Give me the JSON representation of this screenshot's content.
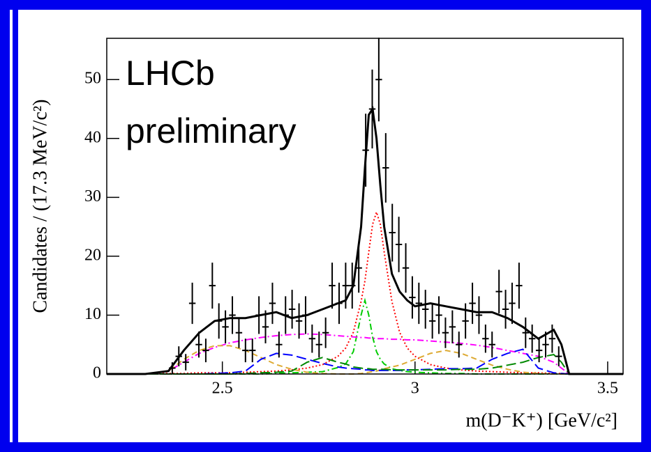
{
  "chart_data": {
    "type": "errorbar",
    "annotations": [
      "LHCb",
      "preliminary"
    ],
    "xlabel": "m(D⁻K⁺) [GeV/c²]",
    "ylabel": "Candidates / (17.3 MeV/c²)",
    "xlim": [
      2.2,
      3.54
    ],
    "ylim": [
      0,
      57
    ],
    "xticks": [
      2.5,
      3,
      3.5
    ],
    "yticks": [
      0,
      10,
      20,
      30,
      40,
      50
    ],
    "color": "#000000",
    "x": [
      2.37,
      2.387,
      2.405,
      2.422,
      2.439,
      2.457,
      2.474,
      2.491,
      2.508,
      2.526,
      2.543,
      2.56,
      2.578,
      2.595,
      2.612,
      2.63,
      2.647,
      2.664,
      2.681,
      2.699,
      2.716,
      2.733,
      2.751,
      2.768,
      2.785,
      2.803,
      2.82,
      2.837,
      2.854,
      2.872,
      2.889,
      2.906,
      2.924,
      2.941,
      2.958,
      2.976,
      2.993,
      3.01,
      3.027,
      3.045,
      3.062,
      3.079,
      3.097,
      3.114,
      3.131,
      3.149,
      3.166,
      3.183,
      3.2,
      3.218,
      3.235,
      3.252,
      3.27,
      3.287,
      3.304,
      3.322,
      3.339,
      3.356,
      3.373
    ],
    "values": [
      1,
      3,
      2,
      12,
      5,
      4,
      15,
      9,
      8,
      10,
      7,
      4,
      4,
      10,
      8,
      12,
      5,
      10,
      11,
      9,
      10,
      6,
      5,
      7,
      15,
      12,
      15,
      15,
      18,
      38,
      45,
      50,
      35,
      24,
      22,
      18,
      13,
      12,
      11,
      9,
      10,
      7,
      8,
      5,
      9,
      12,
      10,
      6,
      5,
      14,
      11,
      12,
      15,
      7,
      6,
      4,
      5,
      6,
      3
    ],
    "errors": [
      1,
      1.7,
      1.4,
      3.5,
      2.2,
      2,
      3.9,
      3,
      2.8,
      3.2,
      2.6,
      2,
      2,
      3.2,
      2.8,
      3.5,
      2.2,
      3.2,
      3.3,
      3,
      3.2,
      2.4,
      2.2,
      2.6,
      3.9,
      3.5,
      3.9,
      3.9,
      4.2,
      6.2,
      6.7,
      7.1,
      5.9,
      4.9,
      4.7,
      4.2,
      3.6,
      3.5,
      3.3,
      3,
      3.2,
      2.6,
      2.8,
      2.2,
      3,
      3.5,
      3.2,
      2.4,
      2.2,
      3.7,
      3.3,
      3.5,
      3.9,
      2.6,
      2.4,
      2,
      2.2,
      2.4,
      1.7
    ],
    "curves": {
      "x": [
        2.2,
        2.3,
        2.36,
        2.4,
        2.44,
        2.48,
        2.52,
        2.56,
        2.6,
        2.64,
        2.68,
        2.72,
        2.76,
        2.8,
        2.82,
        2.84,
        2.86,
        2.87,
        2.88,
        2.89,
        2.9,
        2.91,
        2.92,
        2.94,
        2.96,
        2.98,
        3.0,
        3.04,
        3.08,
        3.12,
        3.16,
        3.2,
        3.24,
        3.28,
        3.32,
        3.36,
        3.38,
        3.4,
        3.5,
        3.54
      ],
      "series": [
        {
          "color": "#ff0000",
          "dash": "dotted",
          "values": [
            0,
            0,
            0.1,
            0.1,
            0.2,
            0.2,
            0.2,
            0.3,
            0.4,
            0.5,
            0.7,
            1.0,
            1.6,
            3.0,
            4.4,
            7.1,
            12.3,
            15.8,
            20.7,
            25.4,
            27.5,
            25.4,
            20.7,
            12.3,
            7.1,
            4.4,
            3.0,
            1.6,
            1.0,
            0.7,
            0.5,
            0.4,
            0.3,
            0.2,
            0.2,
            0.1,
            0.1,
            0,
            0,
            0
          ]
        },
        {
          "color": "#00cc00",
          "dash": "dashdot",
          "values": [
            0,
            0,
            0,
            0,
            0,
            0,
            0,
            0,
            0,
            0.1,
            0.2,
            0.3,
            0.4,
            1.1,
            1.7,
            3.8,
            10,
            12.5,
            10,
            6.3,
            3.8,
            2.5,
            1.7,
            0.9,
            0.6,
            0.4,
            0.3,
            0.2,
            0.1,
            0.1,
            0,
            0,
            0,
            0,
            0,
            0,
            0,
            0,
            0,
            0
          ]
        },
        {
          "color": "#ff00ff",
          "dash": "dashdot",
          "values": [
            0,
            0,
            0.5,
            2,
            3.5,
            4.5,
            5.3,
            5.8,
            6.2,
            6.5,
            6.7,
            6.8,
            6.7,
            6.5,
            6.4,
            6.3,
            6.2,
            6.2,
            6.1,
            6.1,
            6.0,
            6.0,
            6.0,
            5.9,
            5.9,
            5.8,
            5.8,
            5.6,
            5.4,
            5.2,
            4.9,
            4.5,
            4.0,
            3.5,
            3.0,
            2.0,
            1.0,
            0,
            0,
            0
          ]
        },
        {
          "color": "#ddaa33",
          "dash": "dashed",
          "values": [
            0,
            0,
            0.5,
            2.5,
            4,
            4.8,
            4.8,
            4,
            2.8,
            1.6,
            0.8,
            0.3,
            0.1,
            0,
            0,
            0,
            0.1,
            0.2,
            0.3,
            0.4,
            0.5,
            0.7,
            0.9,
            1.2,
            1.5,
            2.0,
            2.5,
            3.5,
            4,
            3.5,
            2.5,
            1.5,
            0.8,
            0.3,
            0.1,
            0,
            0,
            0,
            0,
            0
          ]
        },
        {
          "color": "#0000ff",
          "dash": "longdash",
          "values": [
            0,
            0,
            0,
            0,
            0,
            0.1,
            0.2,
            0.5,
            2.5,
            3.5,
            3.2,
            2.5,
            1.8,
            1.2,
            1.0,
            0.9,
            0.8,
            0.7,
            0.7,
            0.6,
            0.6,
            0.6,
            0.6,
            0.6,
            0.6,
            0.7,
            0.7,
            0.8,
            0.9,
            0.9,
            1.0,
            2.5,
            3.5,
            4.2,
            1.0,
            0.2,
            0.1,
            0,
            0,
            0
          ]
        },
        {
          "color": "#008800",
          "dash": "longdash",
          "values": [
            0,
            0,
            0,
            0,
            0,
            0,
            0,
            0.1,
            0.2,
            0.3,
            0.5,
            2,
            2.8,
            2,
            1.7,
            1.2,
            1.0,
            0.9,
            0.9,
            0.8,
            0.8,
            0.8,
            0.8,
            0.7,
            0.7,
            0.7,
            0.7,
            0.7,
            0.7,
            0.8,
            0.8,
            1.0,
            1.5,
            2.0,
            2.8,
            3.3,
            2.0,
            0,
            0,
            0
          ]
        },
        {
          "color": "#000000",
          "dash": "solid",
          "values": [
            0,
            0,
            0.5,
            4,
            7,
            9,
            9.5,
            9.5,
            10,
            10.5,
            9.5,
            10,
            11,
            12,
            12.5,
            15,
            25,
            35,
            44,
            45,
            40,
            32,
            25,
            17,
            14,
            12.5,
            11.5,
            12,
            11.5,
            11,
            10.5,
            10.5,
            9.5,
            8,
            6,
            7.5,
            5,
            0,
            0,
            0
          ]
        }
      ]
    }
  }
}
